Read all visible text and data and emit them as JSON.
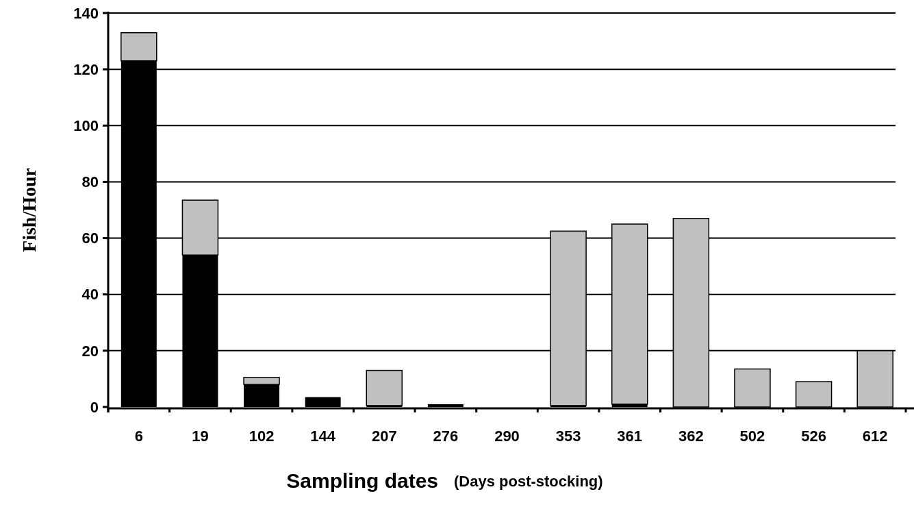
{
  "chart_data": {
    "type": "bar",
    "stacked": true,
    "xlabel": "Sampling dates",
    "ylabel": "Fish/Hour",
    "annotations": [
      "(Days post-stocking)"
    ],
    "categories": [
      "6",
      "19",
      "102",
      "144",
      "207",
      "276",
      "290",
      "353",
      "361",
      "362",
      "502",
      "526",
      "612"
    ],
    "series": [
      {
        "color": "#000000",
        "values": [
          123,
          54,
          8,
          3.5,
          0.5,
          1,
          0,
          0.5,
          1,
          0,
          0,
          0,
          0
        ]
      },
      {
        "color": "#c0c0c0",
        "values": [
          10,
          19.5,
          2.5,
          0,
          12.5,
          0,
          0,
          62,
          64,
          67,
          13.5,
          9,
          20
        ]
      }
    ],
    "ylim": [
      0,
      140
    ],
    "yticks": [
      0,
      20,
      40,
      60,
      80,
      100,
      120,
      140
    ],
    "grid": "y"
  }
}
